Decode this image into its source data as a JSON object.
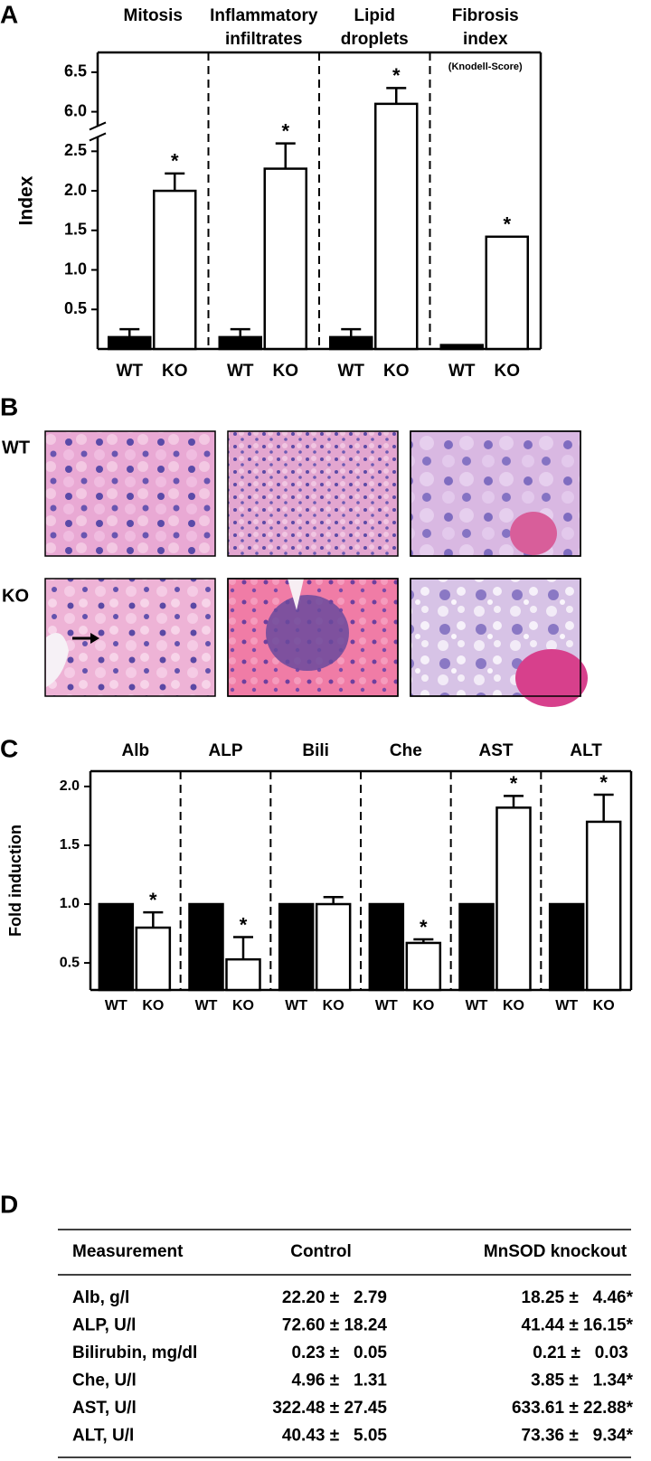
{
  "panel_labels": [
    "A",
    "B",
    "C",
    "D"
  ],
  "chart_data": [
    {
      "type": "bar",
      "categories": [
        [
          "Mitosis"
        ],
        [
          "Inflammatory",
          "infiltrates"
        ],
        [
          "Lipid",
          "droplets"
        ],
        [
          "Fibrosis",
          "index"
        ]
      ],
      "category_notes": [
        null,
        null,
        null,
        "(Knodell-Score)"
      ],
      "y_label": "Index",
      "ylim": [
        0,
        6.75
      ],
      "axis_break": [
        2.75,
        5.75
      ],
      "yticks": [
        0.5,
        {
          "value": 1,
          "label": "1.0"
        },
        1.5,
        {
          "value": 2,
          "label": "2.0"
        },
        2.5,
        {
          "value": 6,
          "label": "6.0"
        },
        6.5
      ],
      "series": [
        {
          "name": "WT",
          "color": "#000000",
          "values": [
            0.15,
            0.15,
            0.15,
            0.05
          ],
          "errors": [
            0.1,
            0.1,
            0.1,
            null
          ],
          "significance": [
            null,
            null,
            null,
            null
          ]
        },
        {
          "name": "KO",
          "color": "#ffffff",
          "values": [
            2.0,
            2.28,
            6.1,
            1.42
          ],
          "errors": [
            0.22,
            0.32,
            0.2,
            null
          ],
          "significance": [
            "*",
            "*",
            "*",
            "*"
          ]
        }
      ]
    },
    {
      "type": "bar",
      "categories": [
        [
          "Alb"
        ],
        [
          "ALP"
        ],
        [
          "Bili"
        ],
        [
          "Che"
        ],
        [
          "AST"
        ],
        [
          "ALT"
        ]
      ],
      "category_notes": [
        null,
        null,
        null,
        null,
        null,
        null
      ],
      "y_label": "Fold induction",
      "ylim": [
        0.27,
        2.13
      ],
      "yticks": [
        0.5,
        {
          "value": 1,
          "label": "1.0"
        },
        1.5,
        {
          "value": 2,
          "label": "2.0"
        }
      ],
      "series": [
        {
          "name": "WT",
          "color": "#000000",
          "values": [
            1.0,
            1.0,
            1.0,
            1.0,
            1.0,
            1.0
          ],
          "errors": [
            null,
            null,
            null,
            null,
            null,
            null
          ],
          "significance": [
            null,
            null,
            null,
            null,
            null,
            null
          ]
        },
        {
          "name": "KO",
          "color": "#ffffff",
          "values": [
            0.8,
            0.53,
            1.0,
            0.67,
            1.82,
            1.7
          ],
          "errors": [
            0.13,
            0.19,
            0.06,
            0.03,
            0.1,
            0.23
          ],
          "significance": [
            "*",
            "*",
            null,
            "*",
            "*",
            "*"
          ]
        }
      ]
    }
  ],
  "images": {
    "row_labels": [
      "WT",
      "KO"
    ]
  },
  "table": {
    "header": [
      "Measurement",
      "Control",
      "MnSOD knockout"
    ],
    "rows": [
      [
        "Alb, g/l",
        "22.20 ±   2.79",
        "18.25 ±   4.46*"
      ],
      [
        "ALP, U/l",
        "72.60 ± 18.24",
        "41.44 ± 16.15*"
      ],
      [
        "Bilirubin, mg/dl",
        "0.23 ±   0.05",
        "0.21 ±   0.03 "
      ],
      [
        "Che, U/l",
        "4.96 ±   1.31",
        "3.85 ±   1.34*"
      ],
      [
        "AST, U/l",
        "322.48 ± 27.45",
        "633.61 ± 22.88*"
      ],
      [
        "ALT, U/l",
        "40.43 ±   5.05",
        "73.36 ±   9.34*"
      ]
    ]
  }
}
